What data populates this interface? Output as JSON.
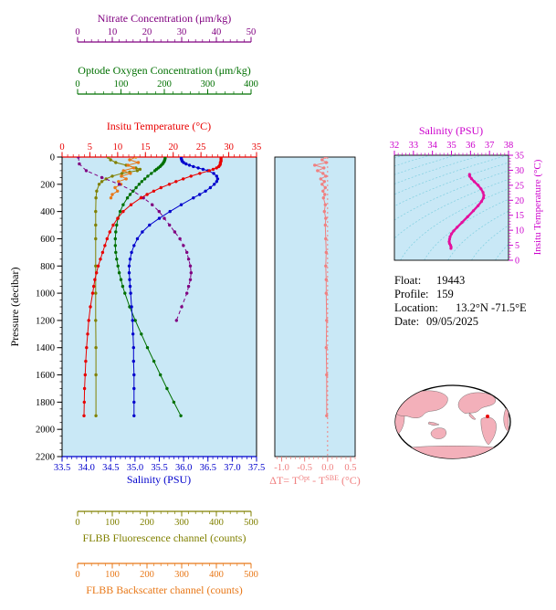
{
  "colors": {
    "nitrate": "#800080",
    "oxygen": "#007000",
    "temperature": "#e80000",
    "pressure": "#000000",
    "salinity": "#0000cc",
    "fluorescence": "#808000",
    "backscatter": "#e87818",
    "delta_t": "#f08080",
    "ts_curve": "#e3119d",
    "ts_axis": "#cc00cc",
    "panel_bg": "#c9e8f6",
    "contour": "#7fcfe0",
    "map_land": "#f3b0ba",
    "map_marker": "#e80000"
  },
  "info": {
    "float_label": "Float:",
    "float_value": "19443",
    "profile_label": "Profile:",
    "profile_value": "159",
    "location_label": "Location:",
    "location_value": "13.2°N -71.5°E",
    "date_label": "Date:",
    "date_value": "09/05/2025"
  },
  "chart_data": [
    {
      "type": "line",
      "id": "profile-panel",
      "orientation": "profiles-vs-pressure",
      "pressure_axis": {
        "title": "Pressure (decibar)",
        "range": [
          0,
          2200
        ],
        "ticks": [
          "0",
          "200",
          "400",
          "600",
          "800",
          "1000",
          "1200",
          "1400",
          "1600",
          "1800",
          "2000",
          "2200"
        ]
      },
      "axes": {
        "nitrate": {
          "title": "Nitrate Concentration (μm/kg)",
          "range": [
            0,
            50
          ],
          "ticks": [
            "0",
            "10",
            "20",
            "30",
            "40",
            "50"
          ]
        },
        "oxygen": {
          "title": "Optode Oxygen Concentration (μm/kg)",
          "range": [
            0,
            400
          ],
          "ticks": [
            "0",
            "100",
            "200",
            "300",
            "400"
          ]
        },
        "temperature": {
          "title": "Insitu Temperature (°C)",
          "range": [
            0,
            35
          ],
          "ticks": [
            "0",
            "5",
            "10",
            "15",
            "20",
            "25",
            "30",
            "35"
          ]
        },
        "salinity": {
          "title": "Salinity (PSU)",
          "range": [
            33.5,
            37.5
          ],
          "ticks": [
            "33.5",
            "34.0",
            "34.5",
            "35.0",
            "35.5",
            "36.0",
            "36.5",
            "37.0",
            "37.5"
          ]
        },
        "fluorescence": {
          "title": "FLBB Fluorescence channel (counts)",
          "range": [
            0,
            500
          ],
          "ticks": [
            "0",
            "100",
            "200",
            "300",
            "400",
            "500"
          ]
        },
        "backscatter": {
          "title": "FLBB Backscatter channel (counts)",
          "range": [
            0,
            500
          ],
          "ticks": [
            "0",
            "100",
            "200",
            "300",
            "400",
            "500"
          ]
        }
      },
      "series": [
        {
          "name": "fluorescence",
          "axis": "fluorescence",
          "color_key": "fluorescence",
          "pressure": [
            0,
            20,
            40,
            60,
            80,
            90,
            100,
            110,
            120,
            140,
            160,
            180,
            200,
            250,
            300,
            400,
            500,
            600,
            800,
            1000,
            1200,
            1400,
            1600,
            1900
          ],
          "values": [
            88,
            95,
            110,
            140,
            168,
            180,
            172,
            150,
            128,
            100,
            82,
            70,
            62,
            55,
            53,
            52,
            52,
            52,
            52,
            52,
            52,
            53,
            53,
            53
          ]
        },
        {
          "name": "backscatter",
          "axis": "backscatter",
          "color_key": "backscatter",
          "pressure": [
            0,
            20,
            40,
            60,
            80,
            100,
            120,
            140,
            160,
            180,
            200,
            225,
            250,
            275,
            300
          ],
          "values": [
            168,
            150,
            175,
            145,
            162,
            132,
            152,
            126,
            140,
            118,
            125,
            108,
            115,
            100,
            96
          ]
        },
        {
          "name": "nitrate",
          "axis": "nitrate",
          "color_key": "nitrate",
          "dashed": true,
          "pressure": [
            0,
            50,
            100,
            150,
            200,
            250,
            300,
            350,
            400,
            450,
            500,
            550,
            600,
            650,
            700,
            750,
            800,
            850,
            900,
            950,
            1000,
            1100,
            1200
          ],
          "values": [
            0.2,
            0.5,
            2.5,
            7,
            12,
            16,
            19,
            21.5,
            23.5,
            25,
            26.5,
            28,
            29.5,
            30.5,
            31.5,
            32,
            32.5,
            32.7,
            32.5,
            32,
            31.5,
            30,
            28.5
          ]
        },
        {
          "name": "oxygen",
          "axis": "oxygen",
          "color_key": "oxygen",
          "pressure": [
            0,
            10,
            20,
            30,
            40,
            50,
            60,
            70,
            80,
            90,
            100,
            120,
            140,
            160,
            180,
            200,
            225,
            250,
            275,
            300,
            350,
            400,
            450,
            500,
            550,
            600,
            650,
            700,
            750,
            800,
            850,
            900,
            950,
            1000,
            1100,
            1200,
            1300,
            1400,
            1500,
            1600,
            1700,
            1800,
            1900
          ],
          "values": [
            202,
            202,
            201,
            200,
            198,
            196,
            193,
            190,
            186,
            182,
            178,
            170,
            162,
            155,
            148,
            142,
            135,
            128,
            121,
            115,
            105,
            98,
            93,
            90,
            88,
            87,
            87,
            88,
            90,
            93,
            96,
            100,
            104,
            109,
            120,
            133,
            147,
            161,
            176,
            191,
            206,
            222,
            238
          ]
        },
        {
          "name": "salinity",
          "axis": "salinity",
          "color_key": "salinity",
          "pressure": [
            0,
            10,
            20,
            30,
            40,
            50,
            60,
            70,
            80,
            90,
            100,
            120,
            140,
            160,
            180,
            200,
            225,
            250,
            275,
            300,
            350,
            400,
            450,
            500,
            550,
            600,
            650,
            700,
            750,
            800,
            850,
            900,
            950,
            1000,
            1100,
            1200,
            1300,
            1400,
            1500,
            1600,
            1700,
            1800,
            1900
          ],
          "values": [
            35.95,
            35.95,
            35.96,
            35.97,
            36.0,
            36.05,
            36.12,
            36.2,
            36.3,
            36.4,
            36.5,
            36.62,
            36.68,
            36.7,
            36.68,
            36.63,
            36.55,
            36.45,
            36.33,
            36.2,
            35.95,
            35.72,
            35.5,
            35.3,
            35.15,
            35.05,
            34.98,
            34.93,
            34.9,
            34.88,
            34.88,
            34.89,
            34.9,
            34.91,
            34.93,
            34.95,
            34.96,
            34.97,
            34.97,
            34.98,
            34.98,
            34.98,
            34.98
          ]
        },
        {
          "name": "temperature",
          "axis": "temperature",
          "color_key": "temperature",
          "pressure": [
            0,
            10,
            20,
            30,
            40,
            50,
            60,
            70,
            80,
            90,
            100,
            120,
            140,
            160,
            180,
            200,
            225,
            250,
            275,
            300,
            350,
            400,
            450,
            500,
            550,
            600,
            650,
            700,
            750,
            800,
            850,
            900,
            950,
            1000,
            1100,
            1200,
            1300,
            1400,
            1500,
            1600,
            1700,
            1800,
            1900
          ],
          "values": [
            28.6,
            28.6,
            28.6,
            28.6,
            28.5,
            28.5,
            28.4,
            28.2,
            27.8,
            27.2,
            26.5,
            24.8,
            23.2,
            21.8,
            20.5,
            19.3,
            17.8,
            16.5,
            15.3,
            14.2,
            12.4,
            11.0,
            10.0,
            9.2,
            8.6,
            8.1,
            7.7,
            7.3,
            6.9,
            6.5,
            6.2,
            5.9,
            5.7,
            5.5,
            5.1,
            4.8,
            4.6,
            4.4,
            4.25,
            4.15,
            4.05,
            4.0,
            3.95
          ]
        }
      ]
    },
    {
      "type": "line",
      "id": "delta-t-panel",
      "x_axis": {
        "title_parts": {
          "p1": "ΔT= T",
          "sup1": "Opt",
          "p2": " - T",
          "sup2": "SBE",
          "p3": " (°C)"
        },
        "range": [
          -1.15,
          0.6
        ],
        "ticks": [
          "-1.0",
          "-0.5",
          "0.0",
          "0.5"
        ]
      },
      "pressure_range": [
        0,
        2200
      ],
      "zero_line": 0,
      "series": [
        {
          "name": "delta-t",
          "color_key": "delta_t",
          "pressure": [
            0,
            20,
            40,
            60,
            80,
            100,
            120,
            140,
            160,
            180,
            200,
            225,
            250,
            275,
            300,
            350,
            400,
            450,
            500,
            600,
            700,
            800,
            900,
            1000,
            1200,
            1400,
            1600,
            1900
          ],
          "values": [
            -0.05,
            -0.12,
            -0.03,
            -0.28,
            -0.08,
            -0.22,
            -0.1,
            -0.04,
            -0.15,
            -0.07,
            -0.12,
            -0.05,
            -0.1,
            -0.06,
            -0.09,
            -0.05,
            -0.07,
            -0.04,
            -0.05,
            -0.04,
            -0.03,
            -0.04,
            -0.03,
            -0.03,
            -0.02,
            -0.03,
            -0.02,
            -0.02
          ]
        }
      ]
    },
    {
      "type": "line",
      "id": "ts-diagram",
      "x_axis": {
        "title": "Salinity (PSU)",
        "range": [
          32,
          38
        ],
        "ticks": [
          "32",
          "33",
          "34",
          "35",
          "36",
          "37",
          "38"
        ]
      },
      "y_axis": {
        "title": "Insitu Temperature (°C)",
        "range": [
          0,
          35
        ],
        "ticks": [
          "0",
          "5",
          "10",
          "15",
          "20",
          "25",
          "30",
          "35"
        ]
      },
      "contours": {
        "type": "sigma-t isopycnals",
        "levels": [
          16,
          17,
          18,
          19,
          20,
          21,
          22,
          23,
          24,
          25,
          26,
          27,
          28,
          29,
          30
        ]
      },
      "series": [
        {
          "name": "t-s-curve",
          "color_key": "ts_curve",
          "salinity": [
            34.97,
            34.98,
            34.95,
            34.9,
            34.88,
            34.9,
            34.93,
            35.0,
            35.12,
            35.3,
            35.55,
            35.85,
            36.15,
            36.4,
            36.58,
            36.68,
            36.7,
            36.66,
            36.55,
            36.4,
            36.2,
            36.05,
            35.96,
            35.95
          ],
          "temperature": [
            3.95,
            4.4,
            5.0,
            5.6,
            6.2,
            7.0,
            7.8,
            8.8,
            9.8,
            11.0,
            12.6,
            14.5,
            16.5,
            18.2,
            19.6,
            20.8,
            21.6,
            22.6,
            23.8,
            25.0,
            26.2,
            27.2,
            28.0,
            28.6
          ]
        }
      ]
    }
  ]
}
